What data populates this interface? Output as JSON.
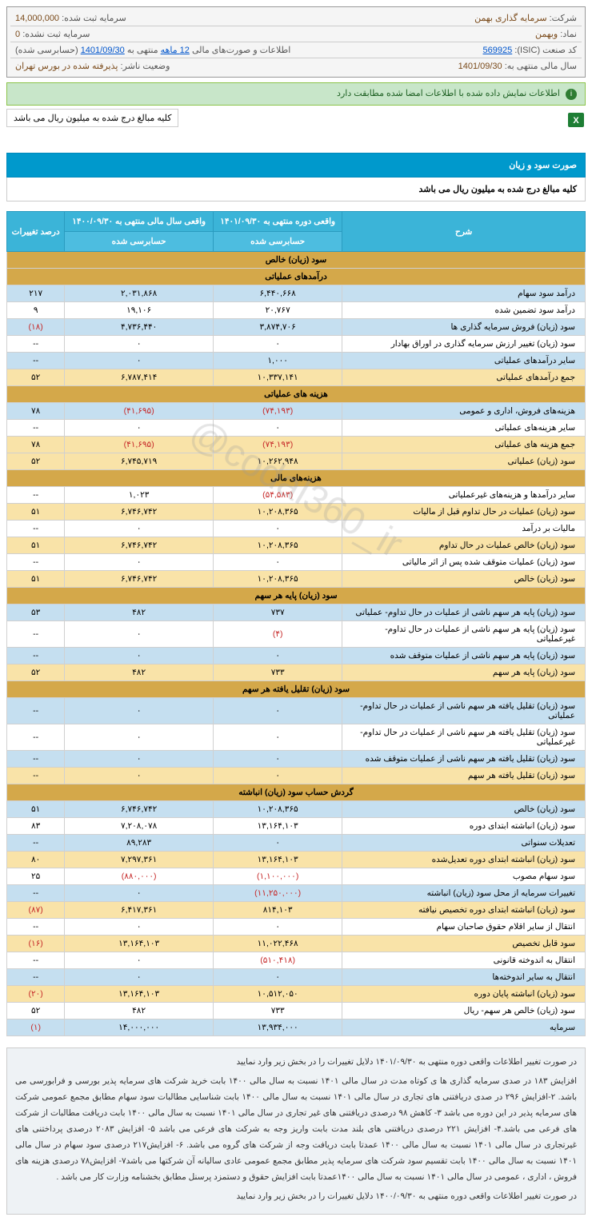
{
  "info": {
    "company_label": "شرکت:",
    "company": "سرمایه گذاری بهمن",
    "capital_reg_label": "سرمایه ثبت شده:",
    "capital_reg": "14,000,000",
    "symbol_label": "نماد:",
    "symbol": "وبهمن",
    "capital_unreg_label": "سرمایه ثبت نشده:",
    "capital_unreg": "0",
    "isic_label": "کد صنعت (ISIC):",
    "isic": "569925",
    "report_label": "اطلاعات و صورت‌های مالی",
    "report_period": "12 ماهه",
    "report_mid": "منتهی به",
    "report_date": "1401/09/30",
    "report_suffix": "(حسابرسی شده)",
    "fy_label": "سال مالی منتهی به:",
    "fy": "1401/09/30",
    "status_label": "وضعیت ناشر:",
    "status": "پذیرفته شده در بورس تهران"
  },
  "notice_green": "اطلاعات نمایش داده شده با اطلاعات امضا شده مطابقت دارد",
  "sub_notice": "کلیه مبالغ درج شده به میلیون ریال می باشد",
  "section_title": "صورت سود و زیان",
  "section_sub": "کلیه مبالغ درج شده به میلیون ریال می باشد",
  "columns": {
    "desc": "شرح",
    "col1": "واقعی دوره منتهی به ۱۴۰۱/۰۹/۳۰",
    "col2": "واقعی سال مالی منتهی به ۱۴۰۰/۰۹/۳۰",
    "col3": "درصد تغییرات",
    "sub1": "حسابرسی شده",
    "sub2": "حسابرسی شده"
  },
  "groups": [
    {
      "title": "سود (زیان) خالص"
    },
    {
      "title": "درآمدهای عملیاتی",
      "rows": [
        {
          "d": "درآمد سود سهام",
          "c1": "۶,۴۴۰,۶۶۸",
          "c2": "۲,۰۳۱,۸۶۸",
          "c3": "۲۱۷",
          "cls": "row-blue"
        },
        {
          "d": "درآمد سود تضمین شده",
          "c1": "۲۰,۷۶۷",
          "c2": "۱۹,۱۰۶",
          "c3": "۹",
          "cls": "row-white"
        },
        {
          "d": "سود (زیان) فروش سرمایه گذاری ها",
          "c1": "۳,۸۷۴,۷۰۶",
          "c2": "۴,۷۳۶,۴۴۰",
          "c3": "(۱۸)",
          "cls": "row-blue",
          "neg3": true
        },
        {
          "d": "سود (زیان) تغییر ارزش سرمایه گذاری در اوراق بهادار",
          "c1": "۰",
          "c2": "۰",
          "c3": "--",
          "cls": "row-white"
        },
        {
          "d": "سایر درآمدهای عملیاتی",
          "c1": "۱,۰۰۰",
          "c2": "۰",
          "c3": "--",
          "cls": "row-blue"
        },
        {
          "d": "جمع درآمدهای عملیاتی",
          "c1": "۱۰,۳۳۷,۱۴۱",
          "c2": "۶,۷۸۷,۴۱۴",
          "c3": "۵۲",
          "cls": "row-yellow"
        }
      ]
    },
    {
      "title": "هزینه های عملیاتی",
      "rows": [
        {
          "d": "هزینه‌های فروش، اداری و عمومی",
          "c1": "(۷۴,۱۹۳)",
          "c2": "(۴۱,۶۹۵)",
          "c3": "۷۸",
          "cls": "row-blue",
          "neg1": true,
          "neg2": true
        },
        {
          "d": "سایر هزینه‌های عملیاتی",
          "c1": "۰",
          "c2": "۰",
          "c3": "--",
          "cls": "row-white"
        },
        {
          "d": "جمع هزینه های عملیاتی",
          "c1": "(۷۴,۱۹۳)",
          "c2": "(۴۱,۶۹۵)",
          "c3": "۷۸",
          "cls": "row-yellow",
          "neg1": true,
          "neg2": true
        },
        {
          "d": "سود (زیان) عملیاتی",
          "c1": "۱۰,۲۶۲,۹۴۸",
          "c2": "۶,۷۴۵,۷۱۹",
          "c3": "۵۲",
          "cls": "row-yellow"
        }
      ]
    },
    {
      "title": "هزینه‌های مالی",
      "rows": [
        {
          "d": "سایر درآمدها و هزینه‌های غیرعملیاتی",
          "c1": "(۵۴,۵۸۳)",
          "c2": "۱,۰۲۳",
          "c3": "--",
          "cls": "row-white",
          "neg1": true
        },
        {
          "d": "سود (زیان) عملیات در حال تداوم قبل از مالیات",
          "c1": "۱۰,۲۰۸,۳۶۵",
          "c2": "۶,۷۴۶,۷۴۲",
          "c3": "۵۱",
          "cls": "row-yellow"
        },
        {
          "d": "مالیات بر درآمد",
          "c1": "۰",
          "c2": "۰",
          "c3": "--",
          "cls": "row-white"
        },
        {
          "d": "سود (زیان) خالص عملیات در حال تداوم",
          "c1": "۱۰,۲۰۸,۳۶۵",
          "c2": "۶,۷۴۶,۷۴۲",
          "c3": "۵۱",
          "cls": "row-yellow"
        },
        {
          "d": "سود (زیان) عملیات متوقف شده پس از اثر مالیاتی",
          "c1": "۰",
          "c2": "۰",
          "c3": "--",
          "cls": "row-white"
        },
        {
          "d": "سود (زیان) خالص",
          "c1": "۱۰,۲۰۸,۳۶۵",
          "c2": "۶,۷۴۶,۷۴۲",
          "c3": "۵۱",
          "cls": "row-yellow"
        }
      ]
    },
    {
      "title": "سود (زیان) پایه هر سهم",
      "rows": [
        {
          "d": "سود (زیان) پایه هر سهم ناشی از عملیات در حال تداوم- عملیاتی",
          "c1": "۷۳۷",
          "c2": "۴۸۲",
          "c3": "۵۳",
          "cls": "row-blue"
        },
        {
          "d": "سود (زیان) پایه هر سهم ناشی از عملیات در حال تداوم- غیرعملیاتی",
          "c1": "(۴)",
          "c2": "۰",
          "c3": "--",
          "cls": "row-white",
          "neg1": true
        },
        {
          "d": "سود (زیان) پایه هر سهم ناشی از عملیات متوقف شده",
          "c1": "۰",
          "c2": "۰",
          "c3": "--",
          "cls": "row-blue"
        },
        {
          "d": "سود (زیان) پایه هر سهم",
          "c1": "۷۳۳",
          "c2": "۴۸۲",
          "c3": "۵۲",
          "cls": "row-yellow"
        }
      ]
    },
    {
      "title": "سود (زیان) تقلیل یافته هر سهم",
      "rows": [
        {
          "d": "سود (زیان) تقلیل یافته هر سهم ناشی از عملیات در حال تداوم- عملیاتی",
          "c1": "۰",
          "c2": "۰",
          "c3": "--",
          "cls": "row-blue"
        },
        {
          "d": "سود (زیان) تقلیل یافته هر سهم ناشی از عملیات در حال تداوم- غیرعملیاتی",
          "c1": "۰",
          "c2": "۰",
          "c3": "--",
          "cls": "row-white"
        },
        {
          "d": "سود (زیان) تقلیل یافته هر سهم ناشی از عملیات متوقف شده",
          "c1": "۰",
          "c2": "۰",
          "c3": "--",
          "cls": "row-blue"
        },
        {
          "d": "سود (زیان) تقلیل یافته هر سهم",
          "c1": "۰",
          "c2": "۰",
          "c3": "--",
          "cls": "row-yellow"
        }
      ]
    },
    {
      "title": "گردش حساب سود (زیان) انباشته",
      "rows": [
        {
          "d": "سود (زیان) خالص",
          "c1": "۱۰,۲۰۸,۳۶۵",
          "c2": "۶,۷۴۶,۷۴۲",
          "c3": "۵۱",
          "cls": "row-blue"
        },
        {
          "d": "سود (زیان) انباشته ابتدای دوره",
          "c1": "۱۳,۱۶۴,۱۰۳",
          "c2": "۷,۲۰۸,۰۷۸",
          "c3": "۸۳",
          "cls": "row-white"
        },
        {
          "d": "تعدیلات سنواتی",
          "c1": "۰",
          "c2": "۸۹,۲۸۳",
          "c3": "--",
          "cls": "row-blue"
        },
        {
          "d": "سود (زیان) انباشته ابتدای دوره تعدیل‌شده",
          "c1": "۱۳,۱۶۴,۱۰۳",
          "c2": "۷,۲۹۷,۳۶۱",
          "c3": "۸۰",
          "cls": "row-yellow"
        },
        {
          "d": "سود سهام مصوب",
          "c1": "(۱,۱۰۰,۰۰۰)",
          "c2": "(۸۸۰,۰۰۰)",
          "c3": "۲۵",
          "cls": "row-white",
          "neg1": true,
          "neg2": true
        },
        {
          "d": "تغییرات سرمایه از محل سود (زیان) انباشته",
          "c1": "(۱۱,۲۵۰,۰۰۰)",
          "c2": "۰",
          "c3": "--",
          "cls": "row-blue",
          "neg1": true
        },
        {
          "d": "سود (زیان) انباشته ابتدای دوره تخصیص نیافته",
          "c1": "۸۱۴,۱۰۳",
          "c2": "۶,۴۱۷,۳۶۱",
          "c3": "(۸۷)",
          "cls": "row-yellow",
          "neg3": true
        },
        {
          "d": "انتقال از سایر اقلام حقوق صاحبان سهام",
          "c1": "۰",
          "c2": "۰",
          "c3": "--",
          "cls": "row-white"
        },
        {
          "d": "سود قابل تخصیص",
          "c1": "۱۱,۰۲۲,۴۶۸",
          "c2": "۱۳,۱۶۴,۱۰۳",
          "c3": "(۱۶)",
          "cls": "row-yellow",
          "neg3": true
        },
        {
          "d": "انتقال به اندوخته قانونی",
          "c1": "(۵۱۰,۴۱۸)",
          "c2": "۰",
          "c3": "--",
          "cls": "row-white",
          "neg1": true
        },
        {
          "d": "انتقال به سایر اندوخته‌ها",
          "c1": "۰",
          "c2": "۰",
          "c3": "--",
          "cls": "row-blue"
        },
        {
          "d": "سود (زیان) انباشته پایان دوره",
          "c1": "۱۰,۵۱۲,۰۵۰",
          "c2": "۱۳,۱۶۴,۱۰۳",
          "c3": "(۲۰)",
          "cls": "row-yellow",
          "neg3": true
        },
        {
          "d": "سود (زیان) خالص هر سهم- ریال",
          "c1": "۷۳۳",
          "c2": "۴۸۲",
          "c3": "۵۲",
          "cls": "row-white"
        },
        {
          "d": "سرمایه",
          "c1": "۱۳,۹۳۴,۰۰۰",
          "c2": "۱۴,۰۰۰,۰۰۰",
          "c3": "(۱)",
          "cls": "row-blue",
          "neg3": true
        }
      ]
    }
  ],
  "footer": {
    "p1": "در صورت تغییر اطلاعات واقعی دوره منتهی به ۱۴۰۱/۰۹/۳۰ دلایل تغییرات را در بخش زیر وارد نمایید",
    "p2": "افزایش ۱۸۳ در صدی سرمایه گذاری ها ی کوتاه مدت در سال مالی ۱۴۰۱ نسبت به سال مالی ۱۴۰۰ بابت خرید شرکت های سرمایه پذیر بورسی و فرابورسی می باشد. ۲-افزایش ۲۹۶ در صدی دریافتنی های تجاری در سال مالی ۱۴۰۱ نسبت به سال مالی ۱۴۰۰ بابت شناسایی مطالبات سود سهام مطابق مجمع عمومی شرکت های سرمایه پذیر در این دوره می باشد ۳- کاهش ۹۸ درصدی دریافتنی های غیر تجاری در سال مالی ۱۴۰۱ نسبت به سال مالی ۱۴۰۰ بابت دریافت مطالبات از شرکت های فرعی می باشد.۴- افزایش ۲۲۱ درصدی دریافتنی های بلند مدت بابت واریز وجه به شرکت های فرعی می باشد ۵- افزایش ۲۰۸۳ درصدی پرداختنی های غیرتجاری در سال مالی ۱۴۰۱ نسبت به سال مالی ۱۴۰۰ عمدتا بابت دریافت وجه از شرکت های گروه می باشد. ۶- افزایش۲۱۷ درصدی سود سهام در سال مالی ۱۴۰۱ نسبت به سال مالی ۱۴۰۰ بابت تقسیم سود شرکت های سرمایه پذیر مطابق مجمع عمومی عادی سالیانه آن شرکتها می باشد۷- افزایش۷۸ درصدی هزینه های فروش ، اداری ، عمومی در سال مالی ۱۴۰۱ نسبت به سال مالی ۱۴۰۰عمدتا بابت افزایش حقوق و دستمزد پرسنل مطابق بخشنامه وزارت کار می باشد .",
    "p3": "در صورت تغییر اطلاعات واقعی دوره منتهی به ۱۴۰۰/۰۹/۳۰ دلایل تغییرات را در بخش زیر وارد نمایید"
  },
  "watermark": "@codal360_ir"
}
